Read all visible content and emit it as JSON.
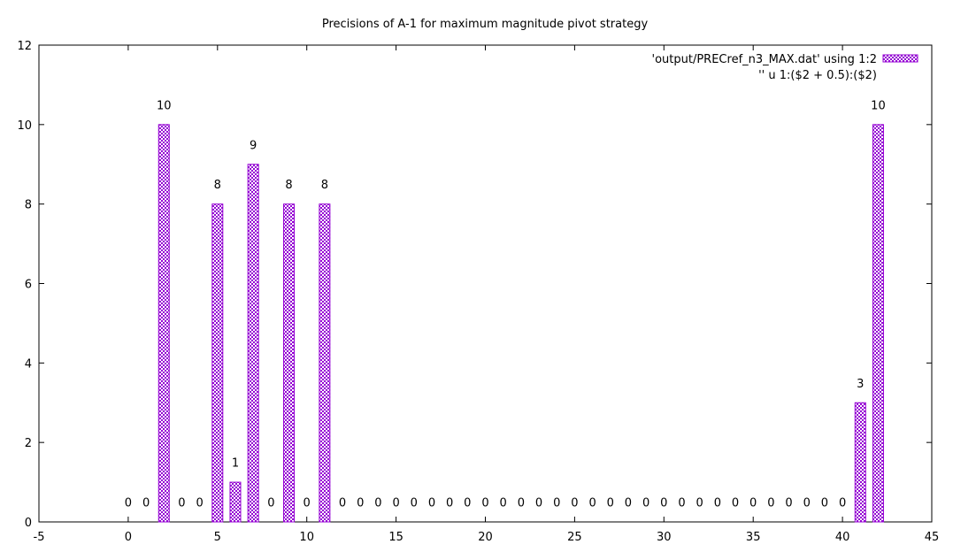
{
  "chart_data": {
    "type": "bar",
    "title": "Precisions of A-1 for maximum magnitude pivot strategy",
    "xlabel": "",
    "ylabel": "",
    "xlim": [
      -5,
      45
    ],
    "ylim": [
      0,
      12
    ],
    "xticks": [
      -5,
      0,
      5,
      10,
      15,
      20,
      25,
      30,
      35,
      40,
      45
    ],
    "yticks": [
      0,
      2,
      4,
      6,
      8,
      10,
      12
    ],
    "grid": false,
    "legend_position": "top-right",
    "bar_color": "#9400d3",
    "bar_pattern": "checkerboard",
    "x": [
      0,
      1,
      2,
      3,
      4,
      5,
      6,
      7,
      8,
      9,
      10,
      11,
      12,
      13,
      14,
      15,
      16,
      17,
      18,
      19,
      20,
      21,
      22,
      23,
      24,
      25,
      26,
      27,
      28,
      29,
      30,
      31,
      32,
      33,
      34,
      35,
      36,
      37,
      38,
      39,
      40,
      41,
      42
    ],
    "series": [
      {
        "name": "'output/PRECref_n3_MAX.dat' using 1:2",
        "values": [
          0,
          0,
          10,
          0,
          0,
          8,
          1,
          9,
          0,
          8,
          0,
          8,
          0,
          0,
          0,
          0,
          0,
          0,
          0,
          0,
          0,
          0,
          0,
          0,
          0,
          0,
          0,
          0,
          0,
          0,
          0,
          0,
          0,
          0,
          0,
          0,
          0,
          0,
          0,
          0,
          0,
          3,
          10
        ]
      },
      {
        "name": "'' u 1:($2 + 0.5):($2)",
        "type": "labels",
        "label_offset": 0.5
      }
    ]
  }
}
